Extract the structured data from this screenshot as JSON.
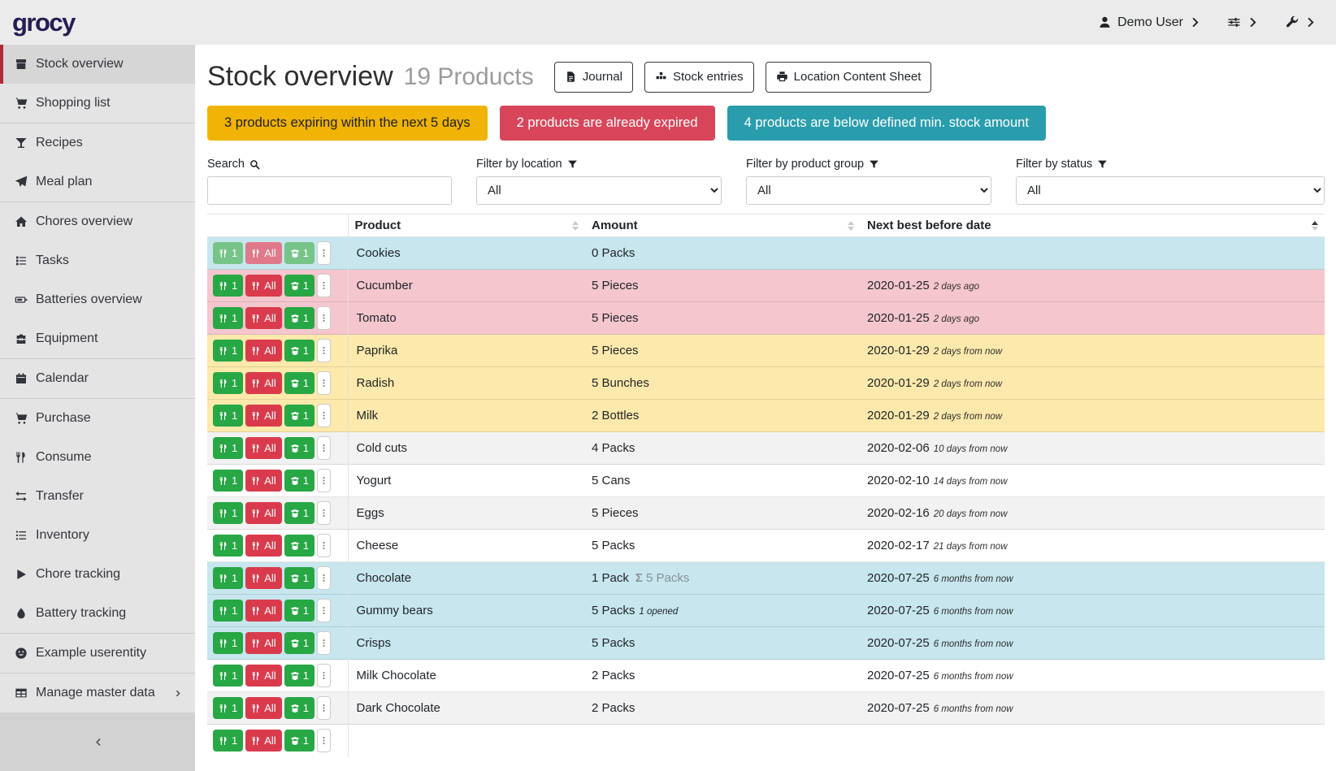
{
  "topbar": {
    "logo": "grocy",
    "user_label": "Demo User"
  },
  "sidebar": {
    "items": [
      {
        "label": "Stock overview",
        "icon": "box-icon",
        "active": true
      },
      {
        "label": "Shopping list",
        "icon": "cart-icon",
        "divider_after": true
      },
      {
        "label": "Recipes",
        "icon": "martini-icon"
      },
      {
        "label": "Meal plan",
        "icon": "paper-plane-icon",
        "divider_after": true
      },
      {
        "label": "Chores overview",
        "icon": "home-icon"
      },
      {
        "label": "Tasks",
        "icon": "tasks-icon"
      },
      {
        "label": "Batteries overview",
        "icon": "battery-icon"
      },
      {
        "label": "Equipment",
        "icon": "toolbox-icon",
        "divider_after": true
      },
      {
        "label": "Calendar",
        "icon": "calendar-icon",
        "divider_after": true
      },
      {
        "label": "Purchase",
        "icon": "cart-icon"
      },
      {
        "label": "Consume",
        "icon": "utensils-icon"
      },
      {
        "label": "Transfer",
        "icon": "exchange-icon"
      },
      {
        "label": "Inventory",
        "icon": "list-icon"
      },
      {
        "label": "Chore tracking",
        "icon": "play-icon"
      },
      {
        "label": "Battery tracking",
        "icon": "drop-icon",
        "divider_after": true
      },
      {
        "label": "Example userentity",
        "icon": "smile-icon",
        "divider_after": true
      },
      {
        "label": "Manage master data",
        "icon": "table-icon",
        "has_submenu": true
      }
    ]
  },
  "header": {
    "title": "Stock overview",
    "subtitle": "19 Products",
    "buttons": [
      {
        "label": "Journal",
        "icon": "journal-icon"
      },
      {
        "label": "Stock entries",
        "icon": "boxes-icon"
      },
      {
        "label": "Location Content Sheet",
        "icon": "print-icon"
      }
    ]
  },
  "alerts": [
    {
      "text": "3 products expiring within the next 5 days",
      "bg": "#f0b306",
      "fg": "#212121"
    },
    {
      "text": "2 products are already expired",
      "bg": "#d8455a",
      "fg": "#ffffff"
    },
    {
      "text": "4 products are below defined min. stock amount",
      "bg": "#2a9dad",
      "fg": "#ffffff"
    }
  ],
  "filters": {
    "search_label": "Search",
    "location_label": "Filter by location",
    "group_label": "Filter by product group",
    "status_label": "Filter by status",
    "search_value": "",
    "location_value": "All",
    "group_value": "All",
    "status_value": "All"
  },
  "table": {
    "columns": [
      {
        "label": "Product",
        "sort": "none"
      },
      {
        "label": "Amount",
        "sort": "none"
      },
      {
        "label": "Next best before date",
        "sort": "asc"
      }
    ],
    "row_buttons": {
      "consume_one": "1",
      "consume_all": "All",
      "open_one": "1"
    },
    "button_colors": {
      "green": "#28a745",
      "red": "#da3b4c",
      "green_muted": "#77c489",
      "red_muted": "#e0798a"
    },
    "status_colors": {
      "belowmin": "#c7e6ee",
      "expired": "#f5c6ce",
      "expiring": "#fce9ab",
      "stripe": "#f2f2f2",
      "none": "#ffffff"
    },
    "rows": [
      {
        "product": "Cookies",
        "amount": "0 Packs",
        "amount_sum": "",
        "amount_note": "",
        "date": "",
        "timeago": "",
        "status": "belowmin",
        "muted": true
      },
      {
        "product": "Cucumber",
        "amount": "5 Pieces",
        "amount_sum": "",
        "amount_note": "",
        "date": "2020-01-25",
        "timeago": "2 days ago",
        "status": "expired"
      },
      {
        "product": "Tomato",
        "amount": "5 Pieces",
        "amount_sum": "",
        "amount_note": "",
        "date": "2020-01-25",
        "timeago": "2 days ago",
        "status": "expired"
      },
      {
        "product": "Paprika",
        "amount": "5 Pieces",
        "amount_sum": "",
        "amount_note": "",
        "date": "2020-01-29",
        "timeago": "2 days from now",
        "status": "expiring"
      },
      {
        "product": "Radish",
        "amount": "5 Bunches",
        "amount_sum": "",
        "amount_note": "",
        "date": "2020-01-29",
        "timeago": "2 days from now",
        "status": "expiring"
      },
      {
        "product": "Milk",
        "amount": "2 Bottles",
        "amount_sum": "",
        "amount_note": "",
        "date": "2020-01-29",
        "timeago": "2 days from now",
        "status": "expiring"
      },
      {
        "product": "Cold cuts",
        "amount": "4 Packs",
        "amount_sum": "",
        "amount_note": "",
        "date": "2020-02-06",
        "timeago": "10 days from now",
        "status": "none"
      },
      {
        "product": "Yogurt",
        "amount": "5 Cans",
        "amount_sum": "",
        "amount_note": "",
        "date": "2020-02-10",
        "timeago": "14 days from now",
        "status": "none"
      },
      {
        "product": "Eggs",
        "amount": "5 Pieces",
        "amount_sum": "",
        "amount_note": "",
        "date": "2020-02-16",
        "timeago": "20 days from now",
        "status": "none"
      },
      {
        "product": "Cheese",
        "amount": "5 Packs",
        "amount_sum": "",
        "amount_note": "",
        "date": "2020-02-17",
        "timeago": "21 days from now",
        "status": "none"
      },
      {
        "product": "Chocolate",
        "amount": "1 Pack",
        "amount_sum": "Σ 5 Packs",
        "amount_note": "",
        "date": "2020-07-25",
        "timeago": "6 months from now",
        "status": "belowmin"
      },
      {
        "product": "Gummy bears",
        "amount": "5 Packs",
        "amount_sum": "",
        "amount_note": "1 opened",
        "date": "2020-07-25",
        "timeago": "6 months from now",
        "status": "belowmin"
      },
      {
        "product": "Crisps",
        "amount": "5 Packs",
        "amount_sum": "",
        "amount_note": "",
        "date": "2020-07-25",
        "timeago": "6 months from now",
        "status": "belowmin"
      },
      {
        "product": "Milk Chocolate",
        "amount": "2 Packs",
        "amount_sum": "",
        "amount_note": "",
        "date": "2020-07-25",
        "timeago": "6 months from now",
        "status": "none"
      },
      {
        "product": "Dark Chocolate",
        "amount": "2 Packs",
        "amount_sum": "",
        "amount_note": "",
        "date": "2020-07-25",
        "timeago": "6 months from now",
        "status": "none"
      },
      {
        "product": "",
        "amount": "",
        "amount_sum": "",
        "amount_note": "",
        "date": "",
        "timeago": "",
        "status": "none",
        "partial": true
      }
    ]
  }
}
